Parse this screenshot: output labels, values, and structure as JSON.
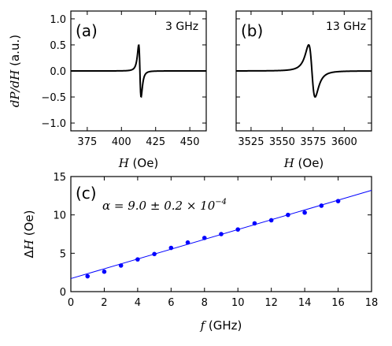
{
  "chart_data": [
    {
      "id": "a",
      "type": "line",
      "panel_label": "(a)",
      "annotation": "3 GHz",
      "ylabel_html": [
        "dP/dH",
        " (a.u.)"
      ],
      "xlabel_var": "H",
      "xlabel_unit": " (Oe)",
      "xlim": [
        363,
        462
      ],
      "ylim": [
        -1.15,
        1.15
      ],
      "xticks": [
        375,
        400,
        425,
        450
      ],
      "yticks": [
        1.0,
        0.5,
        0.0,
        -0.5,
        -1.0
      ],
      "ytick_labels": [
        "1.0",
        "0.5",
        "0.0",
        "−0.5",
        "−1.0"
      ],
      "resonance_field": 413.5,
      "half_width": 1.5,
      "amplitude": 1.0
    },
    {
      "id": "b",
      "type": "line",
      "panel_label": "(b)",
      "annotation": "13 GHz",
      "xlabel_var": "H",
      "xlabel_unit": " (Oe)",
      "xlim": [
        3513,
        3622
      ],
      "ylim": [
        -1.15,
        1.15
      ],
      "xticks": [
        3525,
        3550,
        3575,
        3600
      ],
      "resonance_field": 3574,
      "half_width": 4.5,
      "amplitude": 1.0
    },
    {
      "id": "c",
      "type": "scatter",
      "panel_label": "(c)",
      "annotation_html": [
        "α",
        " = 9.0 ± 0.2 × 10",
        "−4"
      ],
      "xlabel_var": "f",
      "xlabel_unit": " (GHz)",
      "ylabel_prefix": "Δ",
      "ylabel_var": "H",
      "ylabel_unit": " (Oe)",
      "xlim": [
        0,
        18
      ],
      "ylim": [
        0,
        15
      ],
      "xticks": [
        0,
        2,
        4,
        6,
        8,
        10,
        12,
        14,
        16,
        18
      ],
      "yticks": [
        0,
        5,
        10,
        15
      ],
      "x": [
        1,
        2,
        3,
        4,
        5,
        6,
        7,
        8,
        9,
        10,
        11,
        12,
        13,
        14,
        15,
        16
      ],
      "y": [
        2.0,
        2.6,
        3.4,
        4.2,
        4.9,
        5.7,
        6.4,
        7.0,
        7.5,
        8.1,
        8.9,
        9.3,
        10.0,
        10.3,
        11.2,
        11.8
      ],
      "fit": {
        "x": [
          0,
          18
        ],
        "y": [
          1.7,
          13.2
        ]
      },
      "point_color": "#0000ff",
      "fit_color": "#0000ff"
    }
  ]
}
